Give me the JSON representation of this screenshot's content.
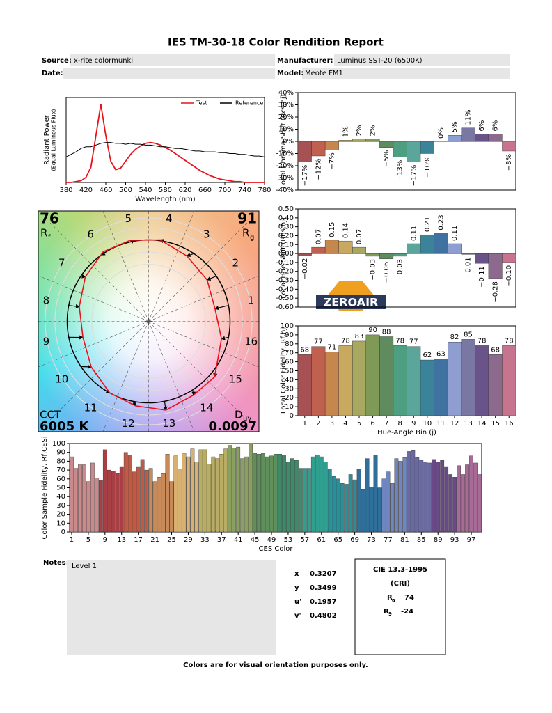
{
  "header": {
    "title": "IES TM-30-18 Color Rendition Report",
    "source_label": "Source:",
    "source": "x-rite colormunki",
    "manufacturer_label": "Manufacturer:",
    "manufacturer": "Luminus SST-20 (6500K)",
    "date_label": "Date:",
    "model_label": "Model:",
    "model": "Meote FM1"
  },
  "color_vector": {
    "rf": 76,
    "rf_symbol": "R",
    "rf_sub": "f",
    "rg": 91,
    "rg_symbol": "R",
    "rg_sub": "g",
    "cct_label": "CCT",
    "cct": "6005 K",
    "duv_symbol": "D",
    "duv_sub": "uv",
    "duv": 0.0097
  },
  "watermark": "ZEROAIR",
  "chart_data": [
    {
      "type": "line",
      "xlabel": "Wavelength (nm)",
      "ylabel": [
        "Radiant Power",
        "(Equal Luminous Flux)"
      ],
      "x": [
        380,
        390,
        400,
        410,
        420,
        430,
        440,
        450,
        460,
        470,
        480,
        490,
        500,
        510,
        520,
        530,
        540,
        550,
        560,
        570,
        580,
        590,
        600,
        610,
        620,
        630,
        640,
        650,
        660,
        670,
        680,
        690,
        700,
        710,
        720,
        730,
        740,
        750,
        760,
        770,
        780
      ],
      "series": [
        {
          "name": "Test",
          "color": "#e8121b",
          "values": [
            0,
            0,
            0.01,
            0.02,
            0.06,
            0.18,
            0.55,
            0.92,
            0.55,
            0.25,
            0.15,
            0.17,
            0.25,
            0.33,
            0.39,
            0.43,
            0.46,
            0.47,
            0.46,
            0.44,
            0.41,
            0.38,
            0.34,
            0.3,
            0.26,
            0.22,
            0.18,
            0.14,
            0.11,
            0.08,
            0.06,
            0.04,
            0.03,
            0.02,
            0.01,
            0.01,
            0,
            0,
            0,
            0,
            0
          ]
        },
        {
          "name": "Reference",
          "color": "#000000",
          "values": [
            0.3,
            0.33,
            0.36,
            0.4,
            0.42,
            0.42,
            0.44,
            0.46,
            0.47,
            0.47,
            0.46,
            0.46,
            0.45,
            0.46,
            0.45,
            0.45,
            0.44,
            0.44,
            0.43,
            0.42,
            0.42,
            0.41,
            0.4,
            0.4,
            0.39,
            0.38,
            0.37,
            0.37,
            0.36,
            0.36,
            0.36,
            0.35,
            0.35,
            0.34,
            0.34,
            0.33,
            0.33,
            0.32,
            0.31,
            0.31,
            0.3
          ]
        }
      ],
      "xlim": [
        380,
        780
      ],
      "xticks": [
        380,
        420,
        460,
        500,
        540,
        580,
        620,
        660,
        700,
        740,
        780
      ],
      "ylim": [
        0,
        1
      ],
      "legend": "upper-right"
    },
    {
      "type": "bar",
      "ylabel": "Local Chroma Shift (Rcs,hj)",
      "values": [
        -17,
        -12,
        -7,
        1,
        2,
        2,
        -5,
        -13,
        -17,
        -10,
        0,
        5,
        11,
        6,
        6,
        -8
      ],
      "value_labels": [
        "−17%",
        "−12%",
        "−7%",
        "1%",
        "2%",
        "2%",
        "−5%",
        "−13%",
        "−17%",
        "−10%",
        "0%",
        "5%",
        "11%",
        "6%",
        "6%",
        "−8%"
      ],
      "colors": [
        "#a65255",
        "#c0604e",
        "#c6874e",
        "#c9a860",
        "#a8a861",
        "#7f9a57",
        "#5f8b5f",
        "#4e9e82",
        "#5aa69b",
        "#3b8398",
        "#3f72a0",
        "#8e9ed1",
        "#7b77a3",
        "#6a5389",
        "#8c6a8e",
        "#c7758f"
      ],
      "ylim": [
        -40,
        40
      ],
      "yticks": [
        {
          "value": -40,
          "label": "-40%"
        },
        {
          "value": -30,
          "label": "-30%"
        },
        {
          "value": -20,
          "label": "-20%"
        },
        {
          "value": -10,
          "label": "-10%"
        },
        {
          "value": 0,
          "label": "0%"
        },
        {
          "value": 10,
          "label": "10%"
        },
        {
          "value": 20,
          "label": "20%"
        },
        {
          "value": 30,
          "label": "30%"
        },
        {
          "value": 40,
          "label": "40%"
        }
      ]
    },
    {
      "type": "bar",
      "ylabel": "Local Hue Shift (Rhs,hj)",
      "values": [
        -0.02,
        0.07,
        0.15,
        0.14,
        0.07,
        -0.03,
        -0.06,
        -0.03,
        0.11,
        0.21,
        0.23,
        0.11,
        -0.01,
        -0.11,
        -0.28,
        -0.1
      ],
      "value_labels": [
        "−0.02",
        "0.07",
        "0.15",
        "0.14",
        "0.07",
        "−0.03",
        "−0.06",
        "−0.03",
        "0.11",
        "0.21",
        "0.23",
        "0.11",
        "−0.01",
        "−0.11",
        "−0.28",
        "−0.10"
      ],
      "colors": [
        "#a65255",
        "#c0604e",
        "#c6874e",
        "#c9a860",
        "#a8a861",
        "#7f9a57",
        "#5f8b5f",
        "#4e9e82",
        "#5aa69b",
        "#3b8398",
        "#3f72a0",
        "#8e9ed1",
        "#7b77a3",
        "#6a5389",
        "#8c6a8e",
        "#c7758f"
      ],
      "ylim": [
        -0.6,
        0.5
      ],
      "yticks": [
        {
          "value": -0.6,
          "label": "-0.60"
        },
        {
          "value": -0.5,
          "label": "-0.50"
        },
        {
          "value": -0.4,
          "label": "-0.40"
        },
        {
          "value": -0.3,
          "label": "-0.30"
        },
        {
          "value": -0.2,
          "label": "-0.20"
        },
        {
          "value": -0.1,
          "label": "-0.10"
        },
        {
          "value": 0,
          "label": "0.00"
        },
        {
          "value": 0.1,
          "label": "0.10"
        },
        {
          "value": 0.2,
          "label": "0.20"
        },
        {
          "value": 0.3,
          "label": "0.30"
        },
        {
          "value": 0.4,
          "label": "0.40"
        },
        {
          "value": 0.5,
          "label": "0.50"
        }
      ]
    },
    {
      "type": "bar",
      "ylabel": "Local Color Fidelity, Rf,hj",
      "xlabel": "Hue-Angle Bin (j)",
      "categories": [
        1,
        2,
        3,
        4,
        5,
        6,
        7,
        8,
        9,
        10,
        11,
        12,
        13,
        14,
        15,
        16
      ],
      "values": [
        68,
        77,
        71,
        78,
        83,
        90,
        88,
        78,
        77,
        62,
        63,
        82,
        85,
        78,
        68,
        78
      ],
      "colors": [
        "#a65255",
        "#c0604e",
        "#c6874e",
        "#c9a860",
        "#a8a861",
        "#7f9a57",
        "#5f8b5f",
        "#4e9e82",
        "#5aa69b",
        "#3b8398",
        "#3f72a0",
        "#8e9ed1",
        "#7b77a3",
        "#6a5389",
        "#8c6a8e",
        "#c7758f"
      ],
      "ylim": [
        0,
        100
      ],
      "yticks": [
        0,
        10,
        20,
        30,
        40,
        50,
        60,
        70,
        80,
        90,
        100
      ]
    },
    {
      "type": "bar",
      "ylabel": "Color Sample Fidelity, Rf,CESi",
      "xlabel": "CES Color",
      "categories": [
        1,
        null,
        null,
        null,
        5,
        null,
        null,
        null,
        9,
        null,
        null,
        null,
        13,
        null,
        null,
        null,
        17,
        null,
        null,
        null,
        21,
        null,
        null,
        null,
        25,
        null,
        null,
        null,
        29,
        null,
        null,
        null,
        33,
        null,
        null,
        null,
        37,
        null,
        null,
        null,
        41,
        null,
        null,
        null,
        45,
        null,
        null,
        null,
        49,
        null,
        null,
        null,
        53,
        null,
        null,
        null,
        57,
        null,
        null,
        null,
        61,
        null,
        null,
        null,
        65,
        null,
        null,
        null,
        69,
        null,
        null,
        null,
        73,
        null,
        null,
        null,
        77,
        null,
        null,
        null,
        81,
        null,
        null,
        null,
        85,
        null,
        null,
        null,
        89,
        null,
        null,
        null,
        93,
        null,
        null,
        null,
        97,
        null,
        null
      ],
      "values": [
        85,
        72,
        76,
        76,
        57,
        78,
        61,
        58,
        93,
        70,
        69,
        66,
        74,
        90,
        87,
        68,
        74,
        82,
        70,
        72,
        57,
        62,
        66,
        88,
        57,
        86,
        71,
        89,
        85,
        94,
        79,
        93,
        93,
        77,
        85,
        83,
        88,
        94,
        98,
        95,
        96,
        83,
        85,
        100,
        89,
        88,
        89,
        85,
        86,
        88,
        88,
        87,
        79,
        83,
        81,
        72,
        72,
        72,
        85,
        87,
        85,
        79,
        71,
        63,
        60,
        55,
        54,
        65,
        59,
        71,
        48,
        83,
        51,
        87,
        50,
        60,
        68,
        55,
        83,
        80,
        84,
        91,
        92,
        84,
        81,
        79,
        78,
        82,
        79,
        81,
        74,
        65,
        62,
        75,
        65,
        76,
        86,
        78,
        65
      ],
      "palette": [
        "#c98a8c",
        "#a83f45",
        "#c05a44",
        "#c98a5a",
        "#d8b070",
        "#b9ad66",
        "#8aa060",
        "#5f8f5a",
        "#3f8a6a",
        "#2fa090",
        "#2a8f98",
        "#2f6f9a",
        "#6f86c0",
        "#6a6aa0",
        "#6a4a86",
        "#a86a96"
      ],
      "ylim": [
        0,
        100
      ],
      "yticks": [
        0,
        10,
        20,
        30,
        40,
        50,
        60,
        70,
        80,
        90,
        100
      ]
    }
  ],
  "notes": {
    "label": "Notes:",
    "text": "Level 1"
  },
  "chromaticity": [
    {
      "label": "x",
      "value": 0.3207
    },
    {
      "label": "y",
      "value": 0.3499
    },
    {
      "label": "u'",
      "value": 0.1957
    },
    {
      "label": "v'",
      "value": 0.4802
    }
  ],
  "cri": {
    "title": "CIE 13.3-1995",
    "subtitle": "(CRI)",
    "ra_symbol": "R",
    "ra_sub": "a",
    "ra": 74,
    "r9_symbol": "R",
    "r9_sub": "9",
    "r9": -24
  },
  "footer": "Colors are for visual orientation purposes only."
}
